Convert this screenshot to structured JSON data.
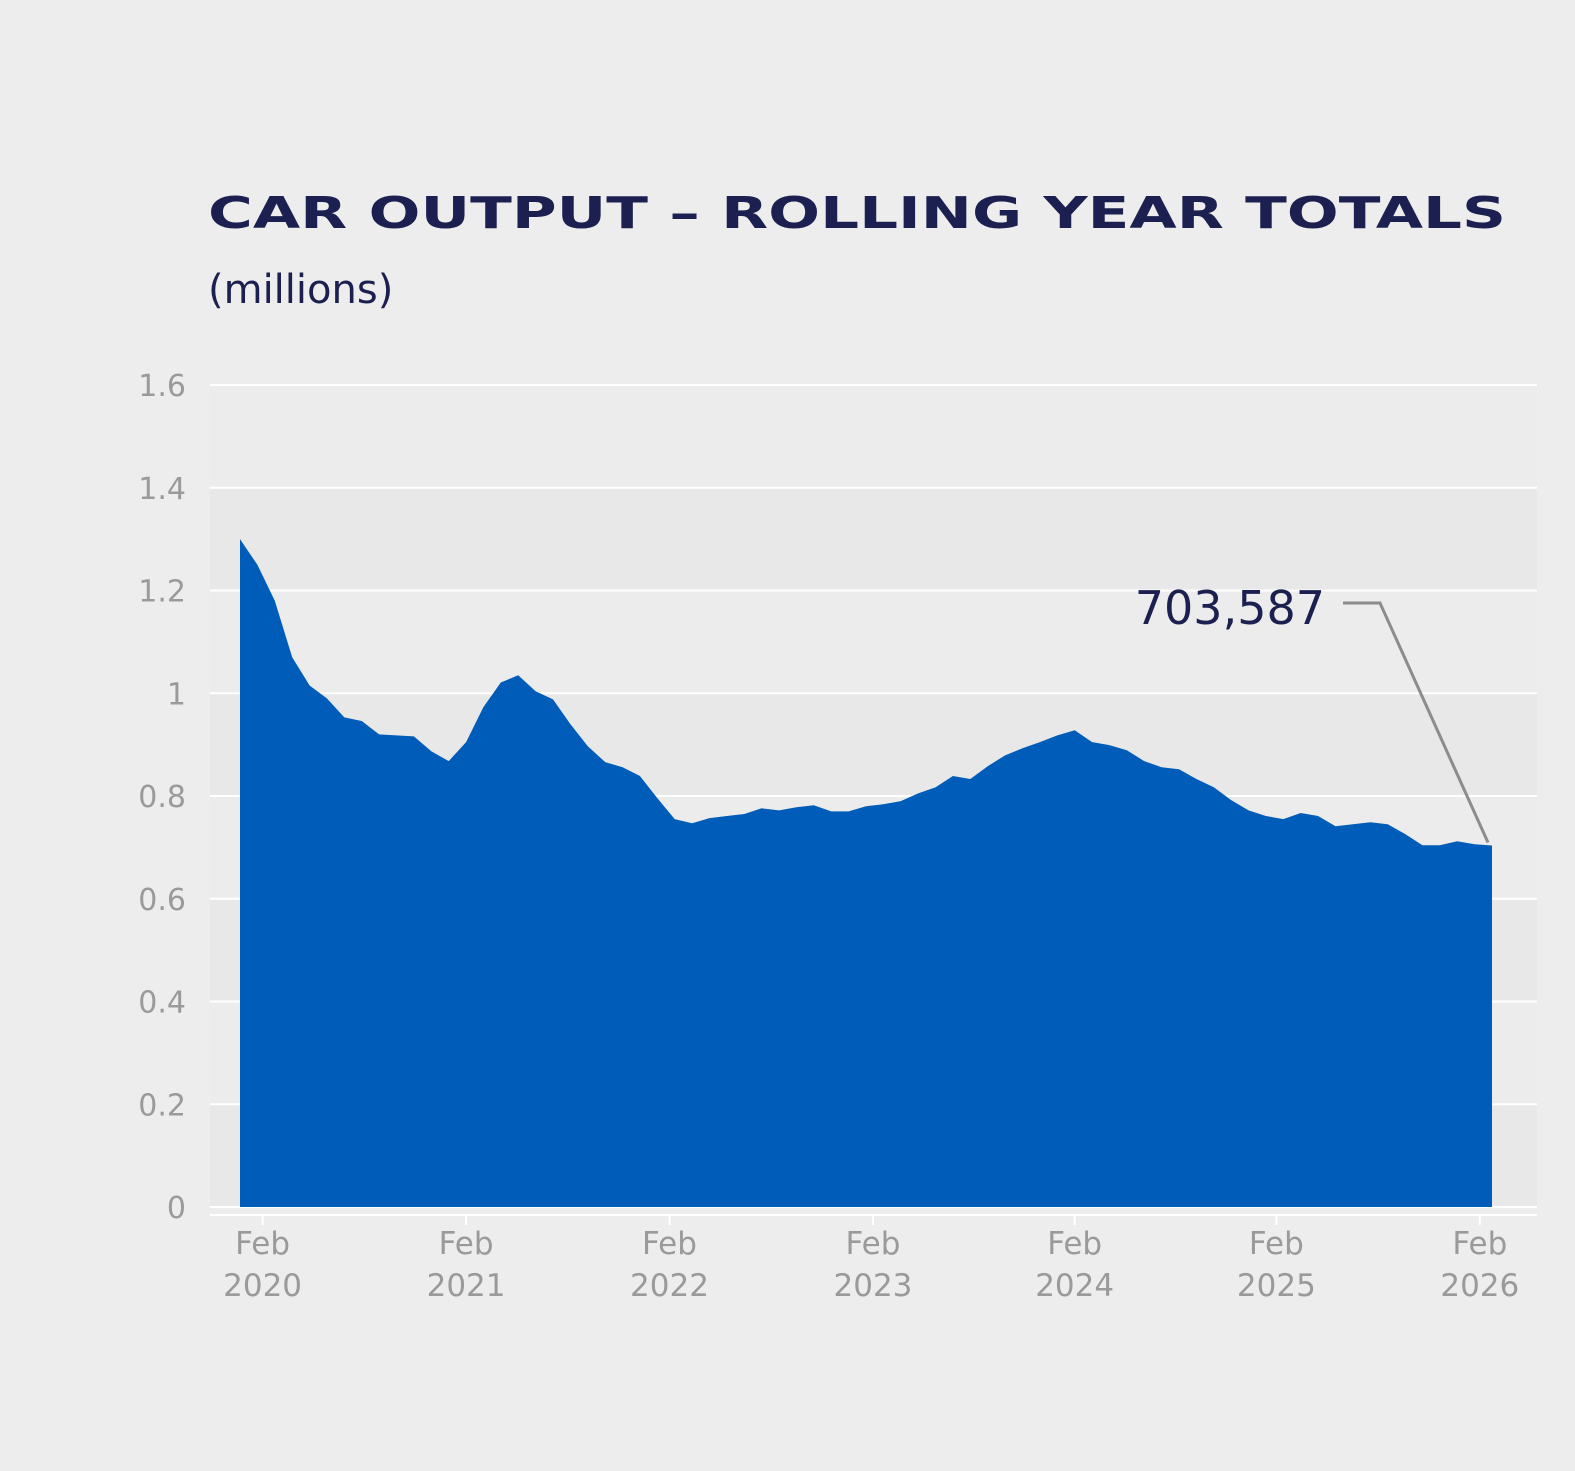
{
  "chart_data": {
    "type": "area",
    "title": "CAR OUTPUT – ROLLING YEAR TOTALS",
    "subtitle": "(millions)",
    "xlabel": "",
    "ylabel": "",
    "ylim": [
      0,
      1.6
    ],
    "yticks": [
      "0",
      "0.2",
      "0.4",
      "0.6",
      "0.8",
      "1",
      "1.2",
      "1.4",
      "1.6"
    ],
    "ytick_values": [
      0,
      0.2,
      0.4,
      0.6,
      0.8,
      1,
      1.2,
      1.4,
      1.6
    ],
    "xticks": [
      {
        "line1": "Feb",
        "line2": "2020",
        "index": 1.3
      },
      {
        "line1": "Feb",
        "line2": "2021",
        "index": 13
      },
      {
        "line1": "Feb",
        "line2": "2022",
        "index": 24.7
      },
      {
        "line1": "Feb",
        "line2": "2023",
        "index": 36.4
      },
      {
        "line1": "Feb",
        "line2": "2024",
        "index": 48
      },
      {
        "line1": "Feb",
        "line2": "2025",
        "index": 59.6
      },
      {
        "line1": "Feb",
        "line2": "2026",
        "index": 71.3
      }
    ],
    "grid": true,
    "color": "#005cb9",
    "annotation": {
      "label": "703,587",
      "value": 0.7036
    },
    "values": [
      1.3,
      1.25,
      1.18,
      1.07,
      1.015,
      0.99,
      0.953,
      0.946,
      0.92,
      0.918,
      0.916,
      0.887,
      0.868,
      0.905,
      0.973,
      1.021,
      1.035,
      1.004,
      0.988,
      0.94,
      0.897,
      0.866,
      0.856,
      0.839,
      0.796,
      0.755,
      0.747,
      0.757,
      0.761,
      0.765,
      0.776,
      0.772,
      0.778,
      0.782,
      0.77,
      0.77,
      0.78,
      0.784,
      0.79,
      0.805,
      0.817,
      0.839,
      0.833,
      0.858,
      0.879,
      0.893,
      0.905,
      0.918,
      0.928,
      0.905,
      0.899,
      0.889,
      0.868,
      0.856,
      0.852,
      0.833,
      0.817,
      0.792,
      0.772,
      0.761,
      0.755,
      0.767,
      0.761,
      0.741,
      0.745,
      0.749,
      0.745,
      0.726,
      0.704,
      0.704,
      0.712,
      0.706,
      0.7036
    ]
  }
}
